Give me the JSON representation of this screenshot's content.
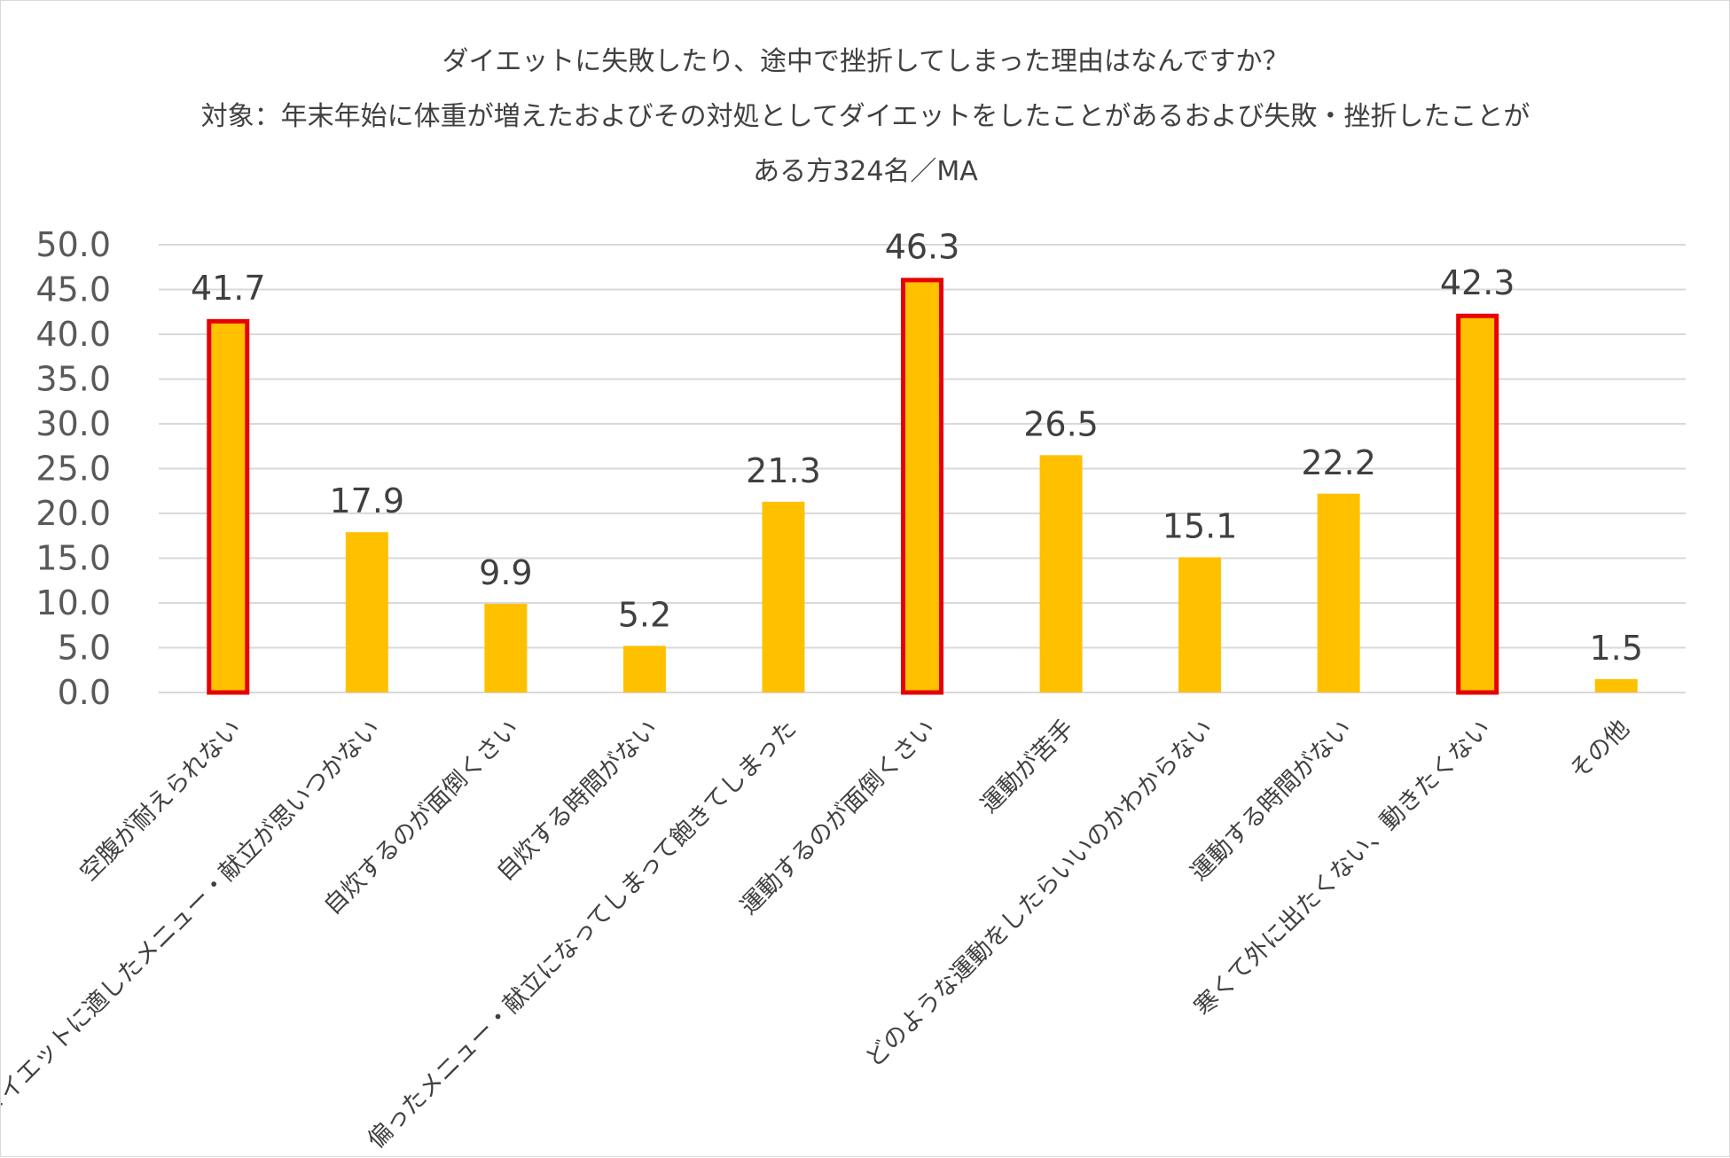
{
  "chart_data": {
    "type": "bar",
    "title_lines": [
      "ダイエットに失敗したり、途中で挫折してしまった理由はなんですか？",
      "対象：年末年始に体重が増えたおよびその対処としてダイエットをしたことがあるおよび失敗・挫折したことが",
      "ある方324名／MA"
    ],
    "categories": [
      "空腹が耐えられない",
      "ダイエットに適したメニュー・献立が思いつかない",
      "自炊するのが面倒くさい",
      "自炊する時間がない",
      "偏ったメニュー・献立になってしまって飽きてしまった",
      "運動するのが面倒くさい",
      "運動が苦手",
      "どのような運動をしたらいいのかわからない",
      "運動する時間がない",
      "寒くて外に出たくない、動きたくない",
      "その他"
    ],
    "values": [
      41.7,
      17.9,
      9.9,
      5.2,
      21.3,
      46.3,
      26.5,
      15.1,
      22.2,
      42.3,
      1.5
    ],
    "value_labels": [
      "41.7",
      "17.9",
      "9.9",
      "5.2",
      "21.3",
      "46.3",
      "26.5",
      "15.1",
      "22.2",
      "42.3",
      "1.5"
    ],
    "highlighted": [
      true,
      false,
      false,
      false,
      false,
      true,
      false,
      false,
      false,
      true,
      false
    ],
    "ylim": [
      0,
      50
    ],
    "yticks": [
      "0.0",
      "5.0",
      "10.0",
      "15.0",
      "20.0",
      "25.0",
      "30.0",
      "35.0",
      "40.0",
      "45.0",
      "50.0"
    ],
    "grid": true,
    "colors": {
      "bar_fill": "#FFC000",
      "highlight_border": "#E60000",
      "grid": "#D9D9D9",
      "text": "#404040"
    }
  }
}
